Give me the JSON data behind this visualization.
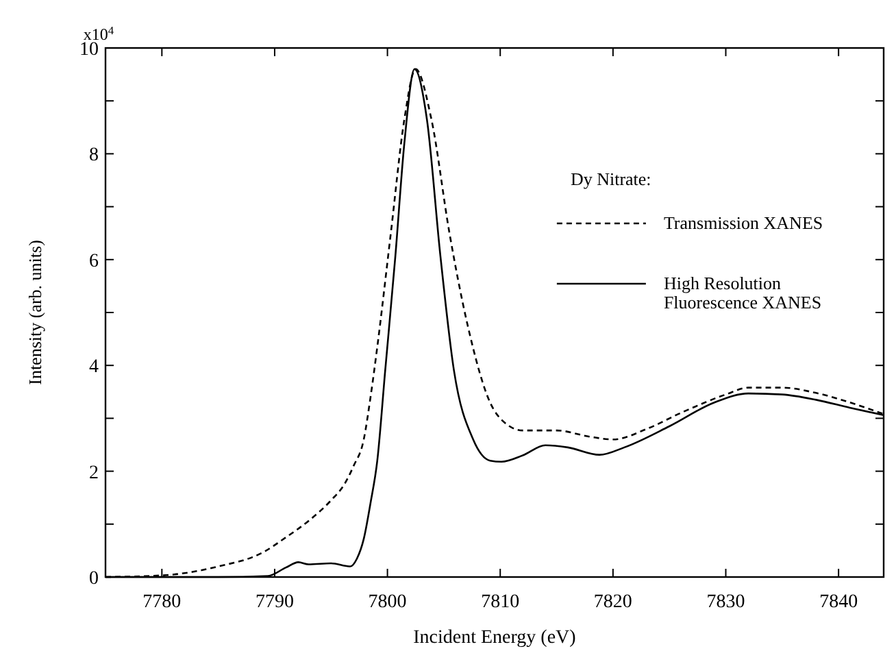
{
  "chart_data": {
    "type": "line",
    "xlabel": "Incident Energy (eV)",
    "ylabel": "Intensity (arb. units)",
    "legend_title": "Dy Nitrate:",
    "annotations": [
      "x10$^{4}$"
    ],
    "xlim": [
      7775,
      7844
    ],
    "xticks": [
      7780,
      7790,
      7800,
      7810,
      7820,
      7830,
      7840
    ],
    "ylim": [
      0,
      10
    ],
    "yticks": [
      0,
      {
        "value": 1,
        "label": null
      },
      2,
      {
        "value": 3,
        "label": null
      },
      4,
      {
        "value": 5,
        "label": null
      },
      6,
      {
        "value": 7,
        "label": null
      },
      8,
      {
        "value": 9,
        "label": null
      },
      10
    ],
    "grid": false,
    "legend": "top right",
    "series": [
      {
        "name": "Transmission XANES",
        "color": "#000000",
        "line_style": "dashed",
        "x": [
          7775,
          7780,
          7785,
          7789,
          7791,
          7793,
          7795,
          7796.2,
          7797,
          7797.9,
          7798.5,
          7799.1,
          7800.3,
          7801.5,
          7802.5,
          7803.9,
          7805.5,
          7807.1,
          7809.1,
          7810.5,
          7812,
          7815,
          7818,
          7820,
          7823,
          7826,
          7830,
          7832,
          7835,
          7838,
          7841,
          7844
        ],
        "values": [
          0,
          0.03,
          0.2,
          0.47,
          0.75,
          1.06,
          1.45,
          1.76,
          2.1,
          2.6,
          3.4,
          4.35,
          6.5,
          8.65,
          9.6,
          8.65,
          6.5,
          4.77,
          3.3,
          2.9,
          2.77,
          2.77,
          2.65,
          2.6,
          2.8,
          3.1,
          3.45,
          3.58,
          3.58,
          3.48,
          3.3,
          3.08
        ]
      },
      {
        "name": "High Resolution Fluorescence XANES",
        "color": "#000000",
        "line_style": "solid",
        "x": [
          7775,
          7785,
          7789.4,
          7791,
          7792.1,
          7793,
          7795,
          7796.7,
          7797.3,
          7797.9,
          7798.5,
          7799.1,
          7799.8,
          7800.7,
          7801.5,
          7802.4,
          7803.5,
          7804.7,
          7805.9,
          7807.6,
          7809.1,
          7810.1,
          7812,
          7814,
          7816,
          7818.8,
          7821,
          7825,
          7829,
          7832,
          7835,
          7838,
          7841,
          7844
        ],
        "values": [
          0,
          0,
          0.02,
          0.18,
          0.28,
          0.24,
          0.26,
          0.2,
          0.35,
          0.72,
          1.4,
          2.2,
          3.9,
          6.06,
          8.2,
          9.6,
          8.65,
          6.06,
          3.9,
          2.6,
          2.2,
          2.18,
          2.3,
          2.49,
          2.45,
          2.31,
          2.45,
          2.85,
          3.3,
          3.47,
          3.45,
          3.35,
          3.2,
          3.06
        ]
      }
    ]
  }
}
